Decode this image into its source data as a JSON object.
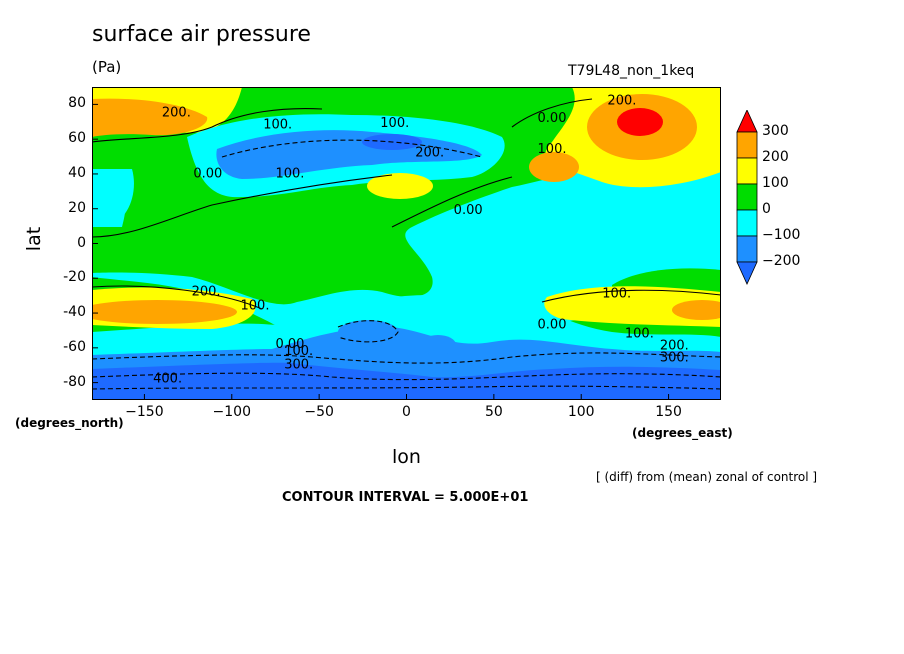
{
  "chart_data": {
    "type": "contour",
    "title": "surface air pressure",
    "units": "(Pa)",
    "run_label": "T79L48_non_1keq",
    "xlabel": "lon",
    "ylabel": "lat",
    "x_unit_label": "(degrees_east)",
    "y_unit_label": "(degrees_north)",
    "xlim": [
      -180,
      180
    ],
    "ylim": [
      -90,
      90
    ],
    "xticks": [
      -150,
      -100,
      -50,
      0,
      50,
      100,
      150
    ],
    "yticks": [
      80,
      60,
      40,
      20,
      0,
      -20,
      -40,
      -60,
      -80
    ],
    "contour_interval": 50,
    "contour_interval_text": "CONTOUR INTERVAL = 5.000E+01",
    "note": "[ (diff) from (mean) zonal of control ]",
    "colorbar": {
      "levels": [
        300,
        200,
        100,
        0,
        -100,
        -200
      ],
      "colors": [
        "#ff0000",
        "#ffa500",
        "#ffff00",
        "#00dd00",
        "#00ffff",
        "#1e90ff",
        "#1e6aff"
      ]
    },
    "contour_labels": [
      {
        "text": "200.",
        "lon": -140,
        "lat": 73
      },
      {
        "text": "100.",
        "lon": -82,
        "lat": 66
      },
      {
        "text": "100.",
        "lon": -15,
        "lat": 67
      },
      {
        "text": "0.00",
        "lon": 75,
        "lat": 70
      },
      {
        "text": "200.",
        "lon": 115,
        "lat": 80
      },
      {
        "text": "200.",
        "lon": 5,
        "lat": 50
      },
      {
        "text": "100.",
        "lon": 75,
        "lat": 52
      },
      {
        "text": "0.00",
        "lon": -122,
        "lat": 38
      },
      {
        "text": "100.",
        "lon": -75,
        "lat": 38
      },
      {
        "text": "0.00",
        "lon": 27,
        "lat": 17
      },
      {
        "text": "200.",
        "lon": -123,
        "lat": -30
      },
      {
        "text": "100.",
        "lon": -95,
        "lat": -38
      },
      {
        "text": "100.",
        "lon": 112,
        "lat": -31
      },
      {
        "text": "0.00",
        "lon": 75,
        "lat": -49
      },
      {
        "text": "0.00",
        "lon": -75,
        "lat": -60
      },
      {
        "text": "100.",
        "lon": -70,
        "lat": -64
      },
      {
        "text": "300.",
        "lon": -70,
        "lat": -72
      },
      {
        "text": "100.",
        "lon": 125,
        "lat": -54
      },
      {
        "text": "200.",
        "lon": 145,
        "lat": -61
      },
      {
        "text": "300.",
        "lon": 145,
        "lat": -68
      },
      {
        "text": "400.",
        "lon": -145,
        "lat": -80
      }
    ]
  }
}
